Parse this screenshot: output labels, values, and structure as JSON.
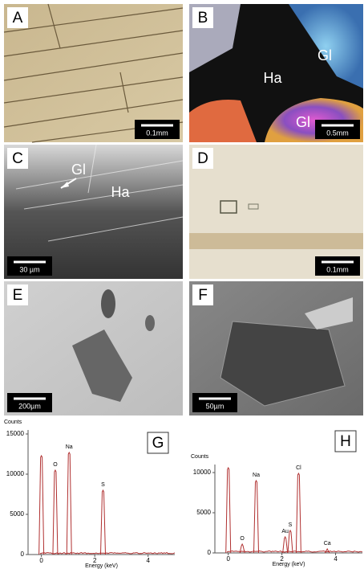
{
  "panels": [
    {
      "letter": "A",
      "scale_bar": "0.1mm"
    },
    {
      "letter": "B",
      "scale_bar": "0.5mm",
      "annotations": [
        "Gl",
        "Ha",
        "Gl"
      ]
    },
    {
      "letter": "C",
      "scale_bar": "30 µm",
      "annotations": [
        "Gl",
        "Ha"
      ]
    },
    {
      "letter": "D",
      "scale_bar": "0.1mm"
    },
    {
      "letter": "E",
      "scale_bar": "200µm"
    },
    {
      "letter": "F",
      "scale_bar": "50µm"
    }
  ],
  "spectra": [
    {
      "letter": "G",
      "y_label": "Counts",
      "x_label": "Energy (keV)",
      "xlim": [
        -0.5,
        5
      ],
      "ylim": [
        0,
        15500
      ],
      "xticks": [
        0,
        2,
        4
      ],
      "yticks": [
        0,
        5000,
        10000,
        15000
      ],
      "peaks": [
        {
          "energy": 0,
          "counts": 12300
        },
        {
          "energy": 0.52,
          "counts": 10500,
          "label": "O"
        },
        {
          "energy": 1.04,
          "counts": 12700,
          "label": "Na"
        },
        {
          "energy": 2.31,
          "counts": 8000,
          "label": "S"
        }
      ]
    },
    {
      "letter": "H",
      "y_label": "Counts",
      "x_label": "Energy (keV)",
      "xlim": [
        -0.5,
        5
      ],
      "ylim": [
        0,
        11000
      ],
      "xticks": [
        0,
        2,
        4
      ],
      "yticks": [
        0,
        5000,
        10000
      ],
      "peaks": [
        {
          "energy": 0,
          "counts": 10600
        },
        {
          "energy": 0.52,
          "counts": 1100,
          "label": "O"
        },
        {
          "energy": 1.04,
          "counts": 9000,
          "label": "Na"
        },
        {
          "energy": 2.12,
          "counts": 2000,
          "label": "Au"
        },
        {
          "energy": 2.31,
          "counts": 2800,
          "label": "S"
        },
        {
          "energy": 2.62,
          "counts": 9900,
          "label": "Cl"
        },
        {
          "energy": 3.69,
          "counts": 500,
          "label": "Ca"
        }
      ]
    }
  ]
}
